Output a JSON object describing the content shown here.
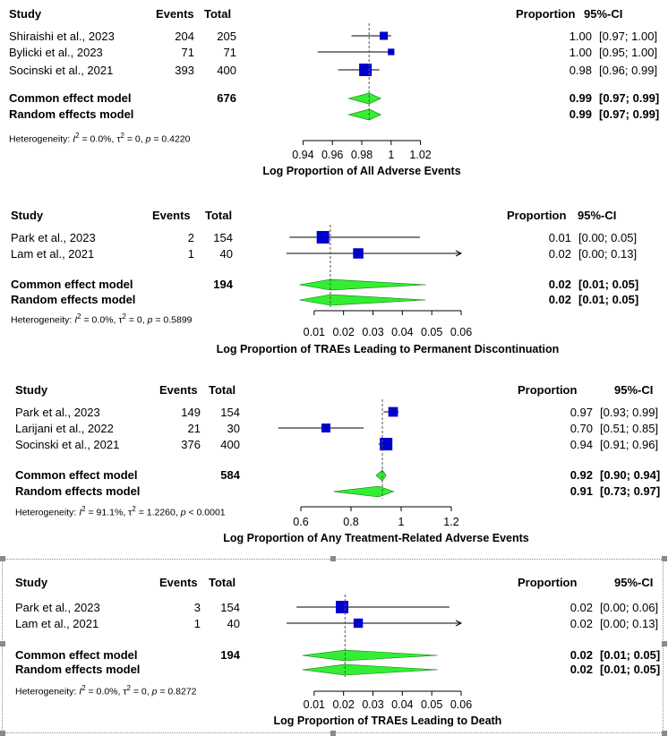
{
  "headers": {
    "study": "Study",
    "events": "Events",
    "total": "Total",
    "proportion": "Proportion",
    "ci": "95%-CI"
  },
  "colors": {
    "square": "#0000cc",
    "diamond": "#33ee33",
    "line": "#000000",
    "dashed": "#555555"
  },
  "chart_data": [
    {
      "type": "forest",
      "title": "Log Proportion of All Adverse Events",
      "xlim": [
        0.93,
        1.03
      ],
      "ticks": [
        0.94,
        0.96,
        0.98,
        1,
        1.02
      ],
      "tick_labels": [
        "0.94",
        "0.96",
        "0.98",
        "1",
        "1.02"
      ],
      "studies": [
        {
          "name": "Shiraishi et al., 2023",
          "events": "204",
          "total": "205",
          "est": 0.995,
          "lo": 0.973,
          "hi": 1.0,
          "weight": 0.3,
          "prop": "1.00",
          "ci": "[0.97; 1.00]",
          "arrow": false
        },
        {
          "name": "Bylicki et al., 2023",
          "events": "71",
          "total": "71",
          "est": 1.0,
          "lo": 0.95,
          "hi": 1.0,
          "weight": 0.15,
          "prop": "1.00",
          "ci": "[0.95; 1.00]",
          "arrow": false
        },
        {
          "name": "Socinski et al., 2021",
          "events": "393",
          "total": "400",
          "est": 0.9825,
          "lo": 0.964,
          "hi": 0.992,
          "weight": 1.0,
          "prop": "0.98",
          "ci": "[0.96; 0.99]",
          "arrow": false
        }
      ],
      "common": {
        "label": "Common effect model",
        "events": "676",
        "est": 0.985,
        "lo": 0.971,
        "hi": 0.993,
        "prop": "0.99",
        "ci": "[0.97; 0.99]"
      },
      "random": {
        "label": "Random effects model",
        "est": 0.985,
        "lo": 0.971,
        "hi": 0.993,
        "prop": "0.99",
        "ci": "[0.97; 0.99]"
      },
      "ref": 0.985,
      "heterogeneity": {
        "prefix": "Heterogeneity: ",
        "i2": " = 0.0%, ",
        "tau2": " = 0, ",
        "p": " = 0.4220"
      }
    },
    {
      "type": "forest",
      "title": "Log Proportion of TRAEs Leading to Permanent Discontinuation",
      "xlim": [
        0.0,
        0.06
      ],
      "ticks": [
        0.01,
        0.02,
        0.03,
        0.04,
        0.05,
        0.06
      ],
      "tick_labels": [
        "0.01",
        "0.02",
        "0.03",
        "0.04",
        "0.05",
        "0.06"
      ],
      "studies": [
        {
          "name": "Park et al., 2023",
          "events": "2",
          "total": "154",
          "est": 0.013,
          "lo": 0.0016,
          "hi": 0.046,
          "weight": 1.0,
          "prop": "0.01",
          "ci": "[0.00; 0.05]",
          "arrow": false
        },
        {
          "name": "Lam et al., 2021",
          "events": "1",
          "total": "40",
          "est": 0.025,
          "lo": 0.0006,
          "hi": 0.06,
          "weight": 0.6,
          "prop": "0.02",
          "ci": "[0.00; 0.13]",
          "arrow": true
        }
      ],
      "common": {
        "label": "Common effect model",
        "events": "194",
        "est": 0.0155,
        "lo": 0.005,
        "hi": 0.048,
        "prop": "0.02",
        "ci": "[0.01; 0.05]"
      },
      "random": {
        "label": "Random effects model",
        "est": 0.0155,
        "lo": 0.005,
        "hi": 0.048,
        "prop": "0.02",
        "ci": "[0.01; 0.05]"
      },
      "ref": 0.0155,
      "heterogeneity": {
        "prefix": "Heterogeneity: ",
        "i2": " = 0.0%, ",
        "tau2": " = 0, ",
        "p": " = 0.5899"
      }
    },
    {
      "type": "forest",
      "title": "Log Proportion of Any Treatment-Related Adverse Events",
      "xlim": [
        0.5,
        1.3
      ],
      "ticks": [
        0.6,
        0.8,
        1,
        1.2
      ],
      "tick_labels": [
        "0.6",
        "0.8",
        "1",
        "1.2"
      ],
      "studies": [
        {
          "name": "Park et al., 2023",
          "events": "149",
          "total": "154",
          "est": 0.968,
          "lo": 0.93,
          "hi": 0.99,
          "weight": 0.5,
          "prop": "0.97",
          "ci": "[0.93; 0.99]",
          "arrow": false
        },
        {
          "name": "Larijani et al., 2022",
          "events": "21",
          "total": "30",
          "est": 0.7,
          "lo": 0.51,
          "hi": 0.85,
          "weight": 0.4,
          "prop": "0.70",
          "ci": "[0.51; 0.85]",
          "arrow": false
        },
        {
          "name": "Socinski et al., 2021",
          "events": "376",
          "total": "400",
          "est": 0.94,
          "lo": 0.91,
          "hi": 0.96,
          "weight": 1.0,
          "prop": "0.94",
          "ci": "[0.91; 0.96]",
          "arrow": false
        }
      ],
      "common": {
        "label": "Common effect model",
        "events": "584",
        "est": 0.925,
        "lo": 0.9,
        "hi": 0.94,
        "prop": "0.92",
        "ci": "[0.90; 0.94]"
      },
      "random": {
        "label": "Random effects model",
        "est": 0.91,
        "lo": 0.73,
        "hi": 0.97,
        "prop": "0.91",
        "ci": "[0.73; 0.97]"
      },
      "ref": 0.925,
      "heterogeneity": {
        "prefix": "Heterogeneity: ",
        "i2": " = 91.1%, ",
        "tau2": " = 1.2260, ",
        "p": " < 0.0001"
      }
    },
    {
      "type": "forest",
      "title": "Log Proportion of TRAEs Leading to Death",
      "xlim": [
        0.0,
        0.06
      ],
      "ticks": [
        0.01,
        0.02,
        0.03,
        0.04,
        0.05,
        0.06
      ],
      "tick_labels": [
        "0.01",
        "0.02",
        "0.03",
        "0.04",
        "0.05",
        "0.06"
      ],
      "studies": [
        {
          "name": "Park et al., 2023",
          "events": "3",
          "total": "154",
          "est": 0.0195,
          "lo": 0.004,
          "hi": 0.056,
          "weight": 1.0,
          "prop": "0.02",
          "ci": "[0.00; 0.06]",
          "arrow": false
        },
        {
          "name": "Lam et al., 2021",
          "events": "1",
          "total": "40",
          "est": 0.025,
          "lo": 0.0006,
          "hi": 0.06,
          "weight": 0.45,
          "prop": "0.02",
          "ci": "[0.00; 0.13]",
          "arrow": true
        }
      ],
      "common": {
        "label": "Common effect model",
        "events": "194",
        "est": 0.0205,
        "lo": 0.006,
        "hi": 0.052,
        "prop": "0.02",
        "ci": "[0.01; 0.05]"
      },
      "random": {
        "label": "Random effects model",
        "est": 0.0205,
        "lo": 0.006,
        "hi": 0.052,
        "prop": "0.02",
        "ci": "[0.01; 0.05]"
      },
      "ref": 0.0205,
      "heterogeneity": {
        "prefix": "Heterogeneity: ",
        "i2": " = 0.0%, ",
        "tau2": " = 0, ",
        "p": " = 0.8272"
      }
    }
  ]
}
